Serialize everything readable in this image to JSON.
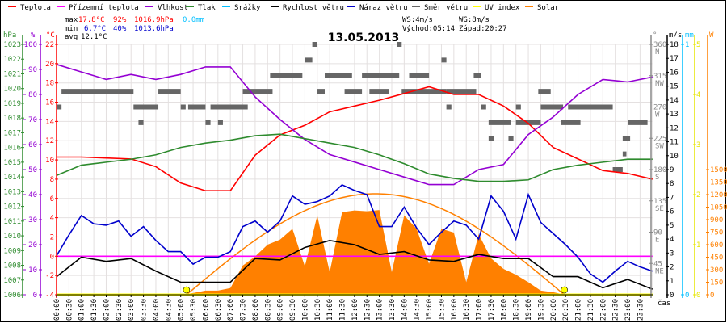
{
  "legend": [
    {
      "label": "Teplota",
      "color": "#ff0000"
    },
    {
      "label": "Přízemní teplota",
      "color": "#ff00ff"
    },
    {
      "label": "Vlhkost",
      "color": "#9400d3"
    },
    {
      "label": "Tlak",
      "color": "#2e8b2e"
    },
    {
      "label": "Srážky",
      "color": "#00bfff"
    },
    {
      "label": "Rychlost větru",
      "color": "#000000"
    },
    {
      "label": "Náraz větru",
      "color": "#0000cc"
    },
    {
      "label": "Směr větru",
      "color": "#666666"
    },
    {
      "label": "UV index",
      "color": "#ffff00"
    },
    {
      "label": "Solar",
      "color": "#ff8000"
    }
  ],
  "stats": {
    "max_label": "max",
    "max_temp": "17.8°C",
    "max_hum": "92%",
    "max_press": "1016.9hPa",
    "max_rain": "0.0mm",
    "min_label": "min",
    "min_temp": "6.7°C",
    "min_hum": "40%",
    "min_press": "1013.6hPa",
    "avg_label": "avg",
    "avg_temp": "12.1°C",
    "ws": "WS:4m/s",
    "wg": "WG:8m/s",
    "sunrise": "Východ:05:14",
    "sunset": "Západ:20:27"
  },
  "chart_data": {
    "type": "line",
    "title": "13.05.2013",
    "xlabel": "čas",
    "sunrise": "05:14",
    "sunset": "20:27",
    "grid": true,
    "axes": {
      "pressure": {
        "unit": "hPa",
        "range": [
          1006,
          1023
        ],
        "ticks": [
          1006,
          1007,
          1008,
          1009,
          1010,
          1011,
          1012,
          1013,
          1014,
          1015,
          1016,
          1017,
          1018,
          1019,
          1020,
          1021,
          1022,
          1023
        ]
      },
      "humidity": {
        "unit": "%",
        "range": [
          0,
          100
        ],
        "ticks": [
          0,
          10,
          20,
          30,
          40,
          50,
          60,
          70,
          80,
          90,
          100
        ]
      },
      "temperature": {
        "unit": "°C",
        "range": [
          -4,
          22
        ],
        "ticks": [
          -4,
          -2,
          0,
          2,
          4,
          6,
          8,
          10,
          12,
          14,
          16,
          18,
          20,
          22
        ]
      },
      "direction": {
        "unit": "°",
        "range": [
          0,
          360
        ],
        "ticks": [
          {
            "v": 360,
            "l": "N"
          },
          {
            "v": 315,
            "l": "NW"
          },
          {
            "v": 270,
            "l": "W"
          },
          {
            "v": 225,
            "l": "SW"
          },
          {
            "v": 180,
            "l": "S"
          },
          {
            "v": 135,
            "l": "SE"
          },
          {
            "v": 90,
            "l": "E"
          },
          {
            "v": 45,
            "l": "NE"
          }
        ]
      },
      "wind": {
        "unit": "m/s",
        "range": [
          0,
          18
        ],
        "ticks": [
          0,
          1,
          2,
          3,
          4,
          5,
          6,
          7,
          8,
          9,
          10,
          11,
          12,
          13,
          14,
          15,
          16,
          17,
          18
        ]
      },
      "rain": {
        "unit": "mm",
        "range": [
          0,
          1
        ],
        "ticks": [
          0,
          1
        ]
      },
      "uv": {
        "unit": "",
        "range": [
          0,
          5
        ],
        "ticks": [
          0,
          1,
          2,
          3,
          4,
          5
        ]
      },
      "solar": {
        "unit": "W",
        "range": [
          0,
          3000
        ],
        "ticks": [
          0,
          150,
          300,
          450,
          600,
          750,
          900,
          1050,
          1200,
          1350,
          1500
        ]
      }
    },
    "x_ticks": [
      "00:00",
      "00:30",
      "01:00",
      "01:30",
      "02:00",
      "02:30",
      "03:00",
      "03:30",
      "04:00",
      "04:30",
      "05:00",
      "05:30",
      "06:00",
      "06:30",
      "07:00",
      "07:30",
      "08:00",
      "08:30",
      "09:00",
      "09:30",
      "10:00",
      "10:30",
      "11:00",
      "11:30",
      "12:00",
      "12:30",
      "13:00",
      "13:30",
      "14:00",
      "14:30",
      "15:00",
      "15:30",
      "16:00",
      "16:30",
      "17:00",
      "17:30",
      "18:00",
      "18:30",
      "19:00",
      "19:30",
      "20:00",
      "20:30",
      "21:00",
      "21:30",
      "22:00",
      "22:30",
      "23:00",
      "23:30"
    ],
    "x_hourly": [
      "00:00",
      "01:00",
      "02:00",
      "03:00",
      "04:00",
      "05:00",
      "06:00",
      "07:00",
      "08:00",
      "09:00",
      "10:00",
      "11:00",
      "12:00",
      "13:00",
      "14:00",
      "15:00",
      "16:00",
      "17:00",
      "18:00",
      "19:00",
      "20:00",
      "21:00",
      "22:00",
      "23:00",
      "24:00"
    ],
    "x_halfhourly": [
      "00:00",
      "00:30",
      "01:00",
      "01:30",
      "02:00",
      "02:30",
      "03:00",
      "03:30",
      "04:00",
      "04:30",
      "05:00",
      "05:30",
      "06:00",
      "06:30",
      "07:00",
      "07:30",
      "08:00",
      "08:30",
      "09:00",
      "09:30",
      "10:00",
      "10:30",
      "11:00",
      "11:30",
      "12:00",
      "12:30",
      "13:00",
      "13:30",
      "14:00",
      "14:30",
      "15:00",
      "15:30",
      "16:00",
      "16:30",
      "17:00",
      "17:30",
      "18:00",
      "18:30",
      "19:00",
      "19:30",
      "20:00",
      "20:30",
      "21:00",
      "21:30",
      "22:00",
      "22:30",
      "23:00",
      "23:30",
      "24:00"
    ],
    "series": [
      {
        "name": "Teplota",
        "axis": "temperature",
        "x": "x_hourly",
        "color": "#ff0000",
        "values": [
          10.3,
          10.3,
          10.2,
          10.1,
          9.3,
          7.6,
          6.8,
          6.8,
          10.5,
          12.6,
          13.6,
          15.0,
          15.6,
          16.2,
          16.9,
          17.6,
          16.8,
          16.8,
          15.6,
          13.8,
          11.3,
          10.1,
          8.9,
          8.6,
          8.0
        ]
      },
      {
        "name": "Přízemní teplota",
        "axis": "temperature",
        "x": "x_hourly",
        "color": "#ff00ff",
        "values": [
          0,
          0,
          0,
          0,
          0,
          0,
          0,
          0,
          0,
          0,
          0,
          0,
          0,
          0,
          0,
          0,
          0,
          0,
          0,
          0,
          0,
          0,
          0,
          0,
          0
        ]
      },
      {
        "name": "Vlhkost",
        "axis": "humidity",
        "x": "x_hourly",
        "color": "#9400d3",
        "values": [
          92,
          89,
          86,
          88,
          86,
          88,
          91,
          91,
          79,
          70,
          62,
          56,
          53,
          50,
          47,
          44,
          44,
          50,
          52,
          64,
          71,
          80,
          86,
          85,
          87
        ]
      },
      {
        "name": "Tlak",
        "axis": "pressure",
        "x": "x_hourly",
        "color": "#2e8b2e",
        "values": [
          1014.1,
          1014.8,
          1015.0,
          1015.2,
          1015.5,
          1016.0,
          1016.3,
          1016.5,
          1016.8,
          1016.9,
          1016.6,
          1016.3,
          1016.0,
          1015.5,
          1014.9,
          1014.2,
          1013.9,
          1013.7,
          1013.7,
          1013.8,
          1014.5,
          1014.8,
          1015.0,
          1015.2,
          1015.2
        ]
      },
      {
        "name": "Srážky",
        "axis": "rain",
        "x": "x_hourly",
        "color": "#00bfff",
        "values": [
          0,
          0,
          0,
          0,
          0,
          0,
          0,
          0,
          0,
          0,
          0,
          0,
          0,
          0,
          0,
          0,
          0,
          0,
          0,
          0,
          0,
          0,
          0,
          0,
          0
        ]
      },
      {
        "name": "Rychlost větru",
        "axis": "wind",
        "x": "x_hourly",
        "color": "#000000",
        "values": [
          1.3,
          2.7,
          2.4,
          2.6,
          1.7,
          0.9,
          0.9,
          0.9,
          2.6,
          2.5,
          3.4,
          3.9,
          3.6,
          2.9,
          3.1,
          2.5,
          2.4,
          2.9,
          2.6,
          2.6,
          1.3,
          1.3,
          0.5,
          1.1,
          0.4
        ]
      },
      {
        "name": "Náraz větru",
        "axis": "wind",
        "x": "x_halfhourly",
        "color": "#0000cc",
        "values": [
          2.8,
          4.3,
          5.7,
          5.1,
          5.0,
          5.3,
          4.2,
          4.9,
          3.9,
          3.1,
          3.1,
          2.2,
          2.7,
          2.7,
          3.1,
          4.9,
          5.3,
          4.5,
          5.3,
          7.1,
          6.5,
          6.7,
          7.1,
          7.9,
          7.5,
          7.2,
          4.9,
          4.9,
          6.3,
          4.8,
          3.6,
          4.5,
          5.3,
          5.0,
          4.0,
          7.1,
          6.0,
          4.0,
          7.2,
          5.2,
          4.4,
          3.6,
          2.7,
          1.5,
          0.9,
          1.7,
          2.4,
          2.0,
          1.7
        ]
      },
      {
        "name": "UV index",
        "axis": "uv",
        "x": "x_hourly",
        "color": "#ffff00",
        "values": [
          0,
          0,
          0,
          0,
          0,
          0,
          0,
          0,
          0,
          0,
          0,
          0,
          0,
          0,
          0,
          0,
          0,
          0,
          0,
          0,
          0,
          0,
          0,
          0,
          0
        ]
      },
      {
        "name": "Solar",
        "axis": "solar",
        "x": "x_halfhourly",
        "color": "#ff8000",
        "type": "area",
        "values": [
          0,
          0,
          0,
          0,
          0,
          0,
          0,
          0,
          0,
          0,
          0,
          20,
          50,
          50,
          80,
          350,
          460,
          600,
          660,
          790,
          340,
          950,
          270,
          990,
          1010,
          1000,
          1015,
          270,
          950,
          790,
          370,
          790,
          745,
          150,
          725,
          435,
          310,
          240,
          150,
          50,
          30,
          0,
          0,
          0,
          0,
          0,
          0,
          0,
          0
        ]
      }
    ],
    "solar_clear_sky_peak": 1210,
    "wind_direction_segments": [
      [
        "00:00",
        "00:12",
        270
      ],
      [
        "00:12",
        "03:06",
        292.5
      ],
      [
        "03:06",
        "04:06",
        270
      ],
      [
        "03:18",
        "03:30",
        247.5
      ],
      [
        "04:06",
        "05:00",
        292.5
      ],
      [
        "05:00",
        "05:12",
        270
      ],
      [
        "05:18",
        "06:00",
        270
      ],
      [
        "06:00",
        "06:12",
        247.5
      ],
      [
        "06:12",
        "07:36",
        270
      ],
      [
        "06:30",
        "06:42",
        247.5
      ],
      [
        "07:30",
        "08:42",
        292.5
      ],
      [
        "07:24",
        "07:42",
        270
      ],
      [
        "08:36",
        "09:54",
        315
      ],
      [
        "10:00",
        "10:18",
        337.5
      ],
      [
        "10:18",
        "10:30",
        360
      ],
      [
        "10:30",
        "10:48",
        292.5
      ],
      [
        "10:48",
        "11:54",
        315
      ],
      [
        "11:36",
        "12:18",
        292.5
      ],
      [
        "12:18",
        "13:48",
        315
      ],
      [
        "12:36",
        "13:24",
        292.5
      ],
      [
        "13:42",
        "13:54",
        360
      ],
      [
        "14:12",
        "15:00",
        315
      ],
      [
        "13:54",
        "15:42",
        292.5
      ],
      [
        "15:30",
        "15:42",
        337.5
      ],
      [
        "15:42",
        "15:54",
        270
      ],
      [
        "15:42",
        "16:54",
        292.5
      ],
      [
        "16:48",
        "17:06",
        315
      ],
      [
        "17:06",
        "17:18",
        270
      ],
      [
        "17:24",
        "18:18",
        247.5
      ],
      [
        "17:24",
        "17:36",
        225
      ],
      [
        "18:12",
        "18:24",
        225
      ],
      [
        "18:30",
        "18:42",
        270
      ],
      [
        "18:30",
        "19:30",
        247.5
      ],
      [
        "19:24",
        "19:54",
        292.5
      ],
      [
        "19:30",
        "20:24",
        270
      ],
      [
        "20:18",
        "21:06",
        247.5
      ],
      [
        "20:36",
        "22:24",
        270
      ],
      [
        "22:24",
        "22:48",
        180
      ],
      [
        "22:48",
        "22:57",
        202.5
      ],
      [
        "22:48",
        "23:06",
        225
      ],
      [
        "23:00",
        "23:48",
        247.5
      ]
    ]
  }
}
